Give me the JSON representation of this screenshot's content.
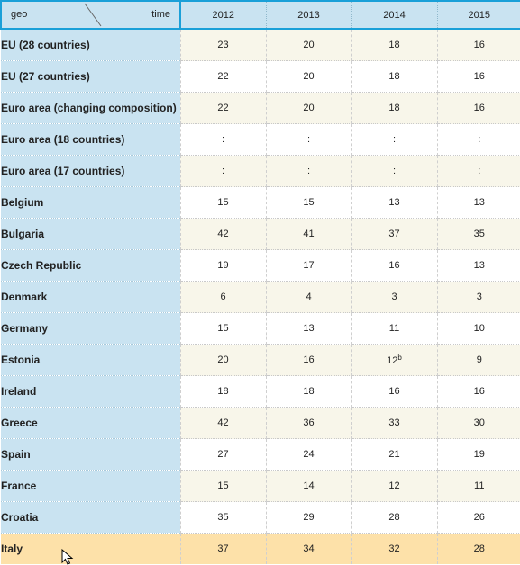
{
  "header": {
    "geo_label": "geo",
    "time_label": "time",
    "years": [
      "2012",
      "2013",
      "2014",
      "2015"
    ]
  },
  "rows": [
    {
      "geo": "EU (28 countries)",
      "values": [
        "23",
        "20",
        "18",
        "16"
      ]
    },
    {
      "geo": "EU (27 countries)",
      "values": [
        "22",
        "20",
        "18",
        "16"
      ]
    },
    {
      "geo": "Euro area (changing composition)",
      "values": [
        "22",
        "20",
        "18",
        "16"
      ]
    },
    {
      "geo": "Euro area (18 countries)",
      "values": [
        ":",
        ":",
        ":",
        ":"
      ]
    },
    {
      "geo": "Euro area (17 countries)",
      "values": [
        ":",
        ":",
        ":",
        ":"
      ]
    },
    {
      "geo": "Belgium",
      "values": [
        "15",
        "15",
        "13",
        "13"
      ]
    },
    {
      "geo": "Bulgaria",
      "values": [
        "42",
        "41",
        "37",
        "35"
      ]
    },
    {
      "geo": "Czech Republic",
      "values": [
        "19",
        "17",
        "16",
        "13"
      ]
    },
    {
      "geo": "Denmark",
      "values": [
        "6",
        "4",
        "3",
        "3"
      ]
    },
    {
      "geo": "Germany",
      "values": [
        "15",
        "13",
        "11",
        "10"
      ]
    },
    {
      "geo": "Estonia",
      "values": [
        "20",
        "16",
        "12",
        "9"
      ],
      "flags": [
        "",
        "",
        "b",
        ""
      ]
    },
    {
      "geo": "Ireland",
      "values": [
        "18",
        "18",
        "16",
        "16"
      ]
    },
    {
      "geo": "Greece",
      "values": [
        "42",
        "36",
        "33",
        "30"
      ]
    },
    {
      "geo": "Spain",
      "values": [
        "27",
        "24",
        "21",
        "19"
      ]
    },
    {
      "geo": "France",
      "values": [
        "15",
        "14",
        "12",
        "11"
      ]
    },
    {
      "geo": "Croatia",
      "values": [
        "35",
        "29",
        "28",
        "26"
      ]
    },
    {
      "geo": "Italy",
      "values": [
        "37",
        "34",
        "32",
        "28"
      ],
      "highlighted": true
    }
  ],
  "colors": {
    "accent_border": "#1aa0d8",
    "label_bg": "#c9e3f1",
    "row_alt_bg": "#f8f6ea",
    "highlight_bg": "#fde1a9"
  },
  "icons": {
    "cursor": "mouse-pointer-icon"
  }
}
